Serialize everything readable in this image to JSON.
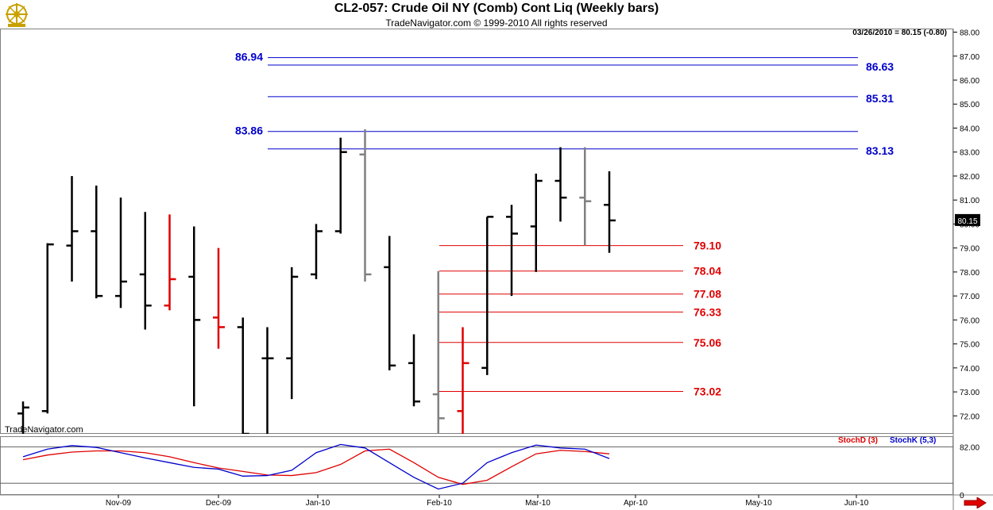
{
  "header": {
    "title": "CL2-057:  Crude Oil NY (Comb) Cont Liq  (Weekly bars)",
    "subtitle": "TradeNavigator.com © 1999-2010 All rights reserved",
    "quote": "03/26/2010 = 80.15 (-0.80)",
    "watermark": "TradeNavigator.com"
  },
  "colors": {
    "bar_up": "#000000",
    "bar_down": "#e00000",
    "bar_gray": "#808080",
    "resistance": "#0000cc",
    "support": "#e00000",
    "stoch_d": "#e00000",
    "stoch_k": "#0000cc"
  },
  "chart_data": [
    {
      "type": "ohlc",
      "title": "CL2-057:  Crude Oil NY (Comb) Cont Liq  (Weekly bars)",
      "ylim": [
        71.25,
        88.15
      ],
      "y_ticks": [
        "72.00",
        "73.00",
        "74.00",
        "75.00",
        "76.00",
        "77.00",
        "78.00",
        "79.00",
        "80.00",
        "81.00",
        "82.00",
        "83.00",
        "84.00",
        "85.00",
        "86.00",
        "87.00",
        "88.00"
      ],
      "x_ticks": [
        "Nov-09",
        "Dec-09",
        "Jan-10",
        "Feb-10",
        "Mar-10",
        "Apr-10",
        "May-10",
        "Jun-10"
      ],
      "last_price_label": "80.15",
      "bars": [
        {
          "open": 72.1,
          "high": 72.6,
          "low": 71.25,
          "close": 72.35,
          "color": "black"
        },
        {
          "open": 72.2,
          "high": 79.2,
          "low": 72.1,
          "close": 79.15,
          "color": "black"
        },
        {
          "open": 79.1,
          "high": 82.0,
          "low": 77.6,
          "close": 79.7,
          "color": "black"
        },
        {
          "open": 79.7,
          "high": 81.6,
          "low": 76.9,
          "close": 77.0,
          "color": "black"
        },
        {
          "open": 77.0,
          "high": 81.1,
          "low": 76.5,
          "close": 77.6,
          "color": "black"
        },
        {
          "open": 77.9,
          "high": 80.5,
          "low": 75.6,
          "close": 76.6,
          "color": "black"
        },
        {
          "open": 76.6,
          "high": 80.4,
          "low": 76.4,
          "close": 77.7,
          "color": "red"
        },
        {
          "open": 77.8,
          "high": 79.9,
          "low": 72.4,
          "close": 76.0,
          "color": "black"
        },
        {
          "open": 76.1,
          "high": 79.0,
          "low": 74.8,
          "close": 75.7,
          "color": "red"
        },
        {
          "open": 75.7,
          "high": 76.1,
          "low": 71.25,
          "close": 71.25,
          "color": "black"
        },
        {
          "open": 74.4,
          "high": 75.7,
          "low": 71.25,
          "close": 74.4,
          "color": "black"
        },
        {
          "open": 74.4,
          "high": 78.2,
          "low": 72.7,
          "close": 77.8,
          "color": "black"
        },
        {
          "open": 77.9,
          "high": 80.0,
          "low": 77.7,
          "close": 79.7,
          "color": "black"
        },
        {
          "open": 79.7,
          "high": 83.6,
          "low": 79.6,
          "close": 83.0,
          "color": "black"
        },
        {
          "open": 82.9,
          "high": 83.95,
          "low": 77.6,
          "close": 77.9,
          "color": "gray"
        },
        {
          "open": 78.2,
          "high": 79.5,
          "low": 73.9,
          "close": 74.1,
          "color": "black"
        },
        {
          "open": 74.2,
          "high": 75.4,
          "low": 72.4,
          "close": 72.6,
          "color": "black"
        },
        {
          "open": 72.9,
          "high": 78.04,
          "low": 71.25,
          "close": 71.9,
          "color": "gray"
        },
        {
          "open": 72.2,
          "high": 75.7,
          "low": 71.25,
          "close": 74.2,
          "color": "red"
        },
        {
          "open": 74.0,
          "high": 80.3,
          "low": 73.7,
          "close": 80.3,
          "color": "black"
        },
        {
          "open": 80.3,
          "high": 80.8,
          "low": 77.0,
          "close": 79.6,
          "color": "black"
        },
        {
          "open": 79.9,
          "high": 82.1,
          "low": 78.0,
          "close": 81.8,
          "color": "black"
        },
        {
          "open": 81.8,
          "high": 83.2,
          "low": 80.1,
          "close": 81.1,
          "color": "black"
        },
        {
          "open": 81.1,
          "high": 83.2,
          "low": 79.1,
          "close": 80.95,
          "color": "gray"
        },
        {
          "open": 80.8,
          "high": 82.2,
          "low": 78.8,
          "close": 80.15,
          "color": "black"
        }
      ],
      "resistance_lines": [
        {
          "label": "86.94",
          "value": 86.94,
          "label_side": "left"
        },
        {
          "label": "86.63",
          "value": 86.63,
          "label_side": "right"
        },
        {
          "label": "85.31",
          "value": 85.31,
          "label_side": "right"
        },
        {
          "label": "83.86",
          "value": 83.86,
          "label_side": "left"
        },
        {
          "label": "83.13",
          "value": 83.13,
          "label_side": "right"
        }
      ],
      "support_lines": [
        {
          "label": "79.10",
          "value": 79.1
        },
        {
          "label": "78.04",
          "value": 78.04
        },
        {
          "label": "77.08",
          "value": 77.08
        },
        {
          "label": "76.33",
          "value": 76.33
        },
        {
          "label": "75.06",
          "value": 75.06
        },
        {
          "label": "73.02",
          "value": 73.02
        }
      ]
    },
    {
      "type": "line",
      "title": "",
      "ylim": [
        0,
        100
      ],
      "y_ticks": [
        "0",
        "82.00"
      ],
      "reference_lines": [
        82,
        20
      ],
      "series": [
        {
          "name": "StochD (3)",
          "color": "#e00000",
          "values": [
            60,
            68,
            73,
            75,
            75,
            72,
            65,
            55,
            46,
            40,
            34,
            33,
            38,
            52,
            75,
            78,
            55,
            30,
            18,
            25,
            48,
            70,
            76,
            74,
            70
          ]
        },
        {
          "name": "StochK (5,3)",
          "color": "#0000cc",
          "values": [
            65,
            78,
            84,
            81,
            72,
            63,
            55,
            47,
            44,
            32,
            33,
            42,
            72,
            86,
            80,
            55,
            30,
            10,
            20,
            55,
            72,
            85,
            80,
            78,
            62
          ]
        }
      ]
    }
  ]
}
